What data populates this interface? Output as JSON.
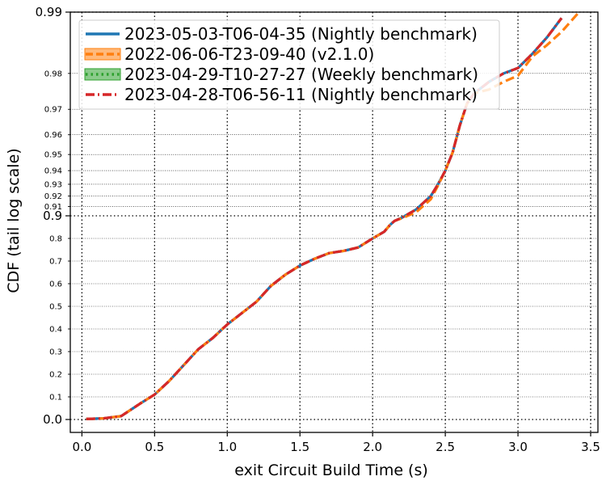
{
  "chart_data": {
    "type": "line",
    "title": "",
    "xlabel": "exit Circuit Build Time (s)",
    "ylabel": "CDF (tail log scale)",
    "xlim": [
      -0.08,
      3.55
    ],
    "xticks": [
      0.0,
      0.5,
      1.0,
      1.5,
      2.0,
      2.5,
      3.0,
      3.5
    ],
    "xtick_labels": [
      "0.0",
      "0.5",
      "1.0",
      "1.5",
      "2.0",
      "2.5",
      "3.0",
      "3.5"
    ],
    "y_scale": "tail-log (linear 0–0.9, log of 1−p above 0.9)",
    "ylim": [
      0.0,
      0.99
    ],
    "yticks_major": [
      0.0,
      0.9,
      0.99
    ],
    "yticks_major_labels": [
      "0.0",
      "0.9",
      "0.99"
    ],
    "yticks_minor": [
      0.1,
      0.2,
      0.3,
      0.4,
      0.5,
      0.6,
      0.7,
      0.8,
      0.91,
      0.92,
      0.93,
      0.94,
      0.95,
      0.96,
      0.97,
      0.98
    ],
    "yticks_minor_labels": [
      "0.1",
      "0.2",
      "0.3",
      "0.4",
      "0.5",
      "0.6",
      "0.7",
      "0.8",
      "0.91",
      "0.92",
      "0.93",
      "0.94",
      "0.95",
      "0.96",
      "0.97",
      "0.98"
    ],
    "grid": true,
    "legend_position": "top-left",
    "series": [
      {
        "name": "2023-05-03-T06-04-35 (Nightly benchmark)",
        "color": "#1f77b4",
        "style": "solid",
        "x": [
          0.03,
          0.15,
          0.27,
          0.4,
          0.5,
          0.6,
          0.7,
          0.8,
          0.9,
          1.0,
          1.1,
          1.2,
          1.3,
          1.4,
          1.5,
          1.6,
          1.7,
          1.8,
          1.9,
          2.0,
          2.08,
          2.12,
          2.15,
          2.2,
          2.3,
          2.4,
          2.45,
          2.5,
          2.55,
          2.6,
          2.65,
          2.7,
          2.8,
          2.9,
          3.0,
          3.1,
          3.2,
          3.3
        ],
        "y": [
          0.002,
          0.005,
          0.015,
          0.07,
          0.11,
          0.17,
          0.24,
          0.31,
          0.36,
          0.42,
          0.47,
          0.52,
          0.59,
          0.64,
          0.68,
          0.71,
          0.735,
          0.745,
          0.76,
          0.8,
          0.83,
          0.86,
          0.877,
          0.891,
          0.907,
          0.92,
          0.93,
          0.94,
          0.951,
          0.964,
          0.972,
          0.975,
          0.978,
          0.98,
          0.9812,
          0.984,
          0.9867,
          0.9893
        ]
      },
      {
        "name": "2022-06-06-T23-09-40 (v2.1.0)",
        "color": "#ff7f0e",
        "style": "dashed",
        "x": [
          0.03,
          0.15,
          0.27,
          0.4,
          0.5,
          0.6,
          0.7,
          0.8,
          0.9,
          1.0,
          1.1,
          1.2,
          1.3,
          1.4,
          1.5,
          1.6,
          1.7,
          1.8,
          1.9,
          2.0,
          2.08,
          2.12,
          2.15,
          2.2,
          2.3,
          2.4,
          2.45,
          2.5,
          2.55,
          2.6,
          2.65,
          2.7,
          2.8,
          2.9,
          3.0,
          3.1,
          3.2,
          3.3,
          3.42
        ],
        "y": [
          0.002,
          0.005,
          0.015,
          0.07,
          0.11,
          0.17,
          0.24,
          0.31,
          0.36,
          0.42,
          0.47,
          0.52,
          0.59,
          0.64,
          0.68,
          0.71,
          0.735,
          0.745,
          0.76,
          0.8,
          0.83,
          0.86,
          0.877,
          0.889,
          0.904,
          0.917,
          0.929,
          0.94,
          0.951,
          0.964,
          0.972,
          0.975,
          0.976,
          0.978,
          0.9795,
          0.9835,
          0.9855,
          0.9875,
          0.99
        ]
      },
      {
        "name": "2023-04-29-T10-27-27 (Weekly benchmark)",
        "color": "#2ca02c",
        "style": "dotted",
        "x": [
          0.03,
          0.15,
          0.27,
          0.4,
          0.5,
          0.6,
          0.7,
          0.8,
          0.9,
          1.0,
          1.1,
          1.2,
          1.3,
          1.4,
          1.5,
          1.6,
          1.7,
          1.8,
          1.9,
          2.0,
          2.08,
          2.12,
          2.15,
          2.2,
          2.3,
          2.4,
          2.45,
          2.5,
          2.55,
          2.6,
          2.65,
          2.7,
          2.8,
          2.9,
          3.0,
          3.1,
          3.2,
          3.3
        ],
        "y": [
          0.002,
          0.005,
          0.015,
          0.07,
          0.11,
          0.17,
          0.24,
          0.31,
          0.36,
          0.42,
          0.47,
          0.52,
          0.59,
          0.64,
          0.68,
          0.71,
          0.735,
          0.745,
          0.76,
          0.8,
          0.83,
          0.86,
          0.877,
          0.891,
          0.907,
          0.92,
          0.93,
          0.94,
          0.951,
          0.964,
          0.972,
          0.975,
          0.978,
          0.98,
          0.9812,
          0.984,
          0.9867,
          0.9893
        ]
      },
      {
        "name": "2023-04-28-T06-56-11 (Nightly benchmark)",
        "color": "#d62728",
        "style": "dashdot",
        "x": [
          0.03,
          0.15,
          0.27,
          0.4,
          0.5,
          0.6,
          0.7,
          0.8,
          0.9,
          1.0,
          1.1,
          1.2,
          1.3,
          1.4,
          1.5,
          1.6,
          1.7,
          1.8,
          1.9,
          2.0,
          2.08,
          2.12,
          2.15,
          2.2,
          2.3,
          2.4,
          2.45,
          2.5,
          2.55,
          2.6,
          2.65,
          2.7,
          2.8,
          2.9,
          3.0,
          3.1,
          3.2,
          3.3
        ],
        "y": [
          0.002,
          0.005,
          0.015,
          0.07,
          0.11,
          0.17,
          0.24,
          0.31,
          0.36,
          0.42,
          0.47,
          0.52,
          0.59,
          0.64,
          0.68,
          0.71,
          0.735,
          0.745,
          0.76,
          0.8,
          0.83,
          0.86,
          0.877,
          0.891,
          0.907,
          0.92,
          0.93,
          0.94,
          0.951,
          0.964,
          0.972,
          0.975,
          0.978,
          0.98,
          0.9812,
          0.984,
          0.9867,
          0.9893
        ]
      }
    ]
  }
}
